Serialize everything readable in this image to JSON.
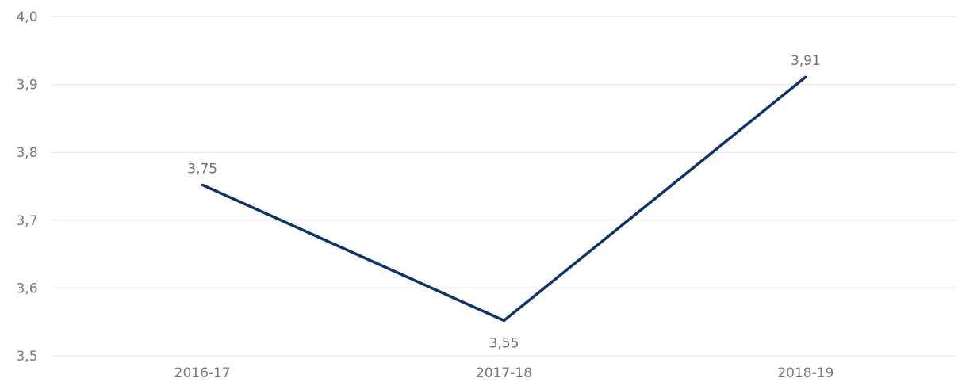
{
  "colors": {
    "series": "#0d3466",
    "grid": "#e3e3e3",
    "axis_text": "#7a7a7a",
    "label_text": "#6e6e6e"
  },
  "chart_data": {
    "type": "line",
    "title": "",
    "xlabel": "",
    "ylabel": "",
    "categories": [
      "2016-17",
      "2017-18",
      "2018-19"
    ],
    "series": [
      {
        "values": [
          3.752,
          3.552,
          3.911
        ],
        "data_labels": [
          "3,75",
          "3,55",
          "3,91"
        ],
        "label_positions": [
          "above",
          "below",
          "above"
        ]
      }
    ],
    "ylim": [
      3.5,
      4.0
    ],
    "y_ticks": [
      3.5,
      3.6,
      3.7,
      3.8,
      3.9,
      4.0
    ],
    "y_tick_labels": [
      "3,5",
      "3,6",
      "3,7",
      "3,8",
      "3,9",
      "4,0"
    ],
    "grid": true,
    "legend": "none"
  }
}
